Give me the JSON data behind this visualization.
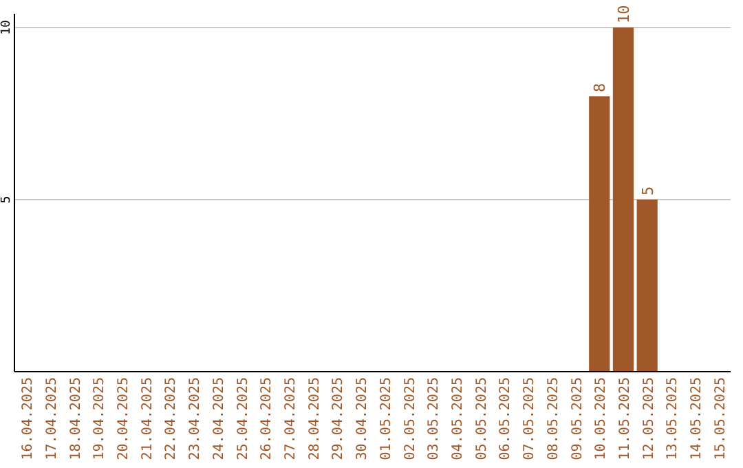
{
  "chart_data": {
    "type": "bar",
    "categories": [
      "16.04.2025",
      "17.04.2025",
      "18.04.2025",
      "19.04.2025",
      "20.04.2025",
      "21.04.2025",
      "22.04.2025",
      "23.04.2025",
      "24.04.2025",
      "25.04.2025",
      "26.04.2025",
      "27.04.2025",
      "28.04.2025",
      "29.04.2025",
      "30.04.2025",
      "01.05.2025",
      "02.05.2025",
      "03.05.2025",
      "04.05.2025",
      "05.05.2025",
      "06.05.2025",
      "07.05.2025",
      "08.05.2025",
      "09.05.2025",
      "10.05.2025",
      "11.05.2025",
      "12.05.2025",
      "13.05.2025",
      "14.05.2025",
      "15.05.2025"
    ],
    "values": [
      0,
      0,
      0,
      0,
      0,
      0,
      0,
      0,
      0,
      0,
      0,
      0,
      0,
      0,
      0,
      0,
      0,
      0,
      0,
      0,
      0,
      0,
      0,
      0,
      8,
      10,
      5,
      0,
      0,
      0
    ],
    "value_labels": [
      null,
      null,
      null,
      null,
      null,
      null,
      null,
      null,
      null,
      null,
      null,
      null,
      null,
      null,
      null,
      null,
      null,
      null,
      null,
      null,
      null,
      null,
      null,
      null,
      "8",
      "10",
      "5",
      null,
      null,
      null
    ],
    "color": "#a0582a",
    "ylim": [
      0,
      10.4
    ],
    "yticks": [
      5,
      10
    ],
    "grid": "y"
  }
}
